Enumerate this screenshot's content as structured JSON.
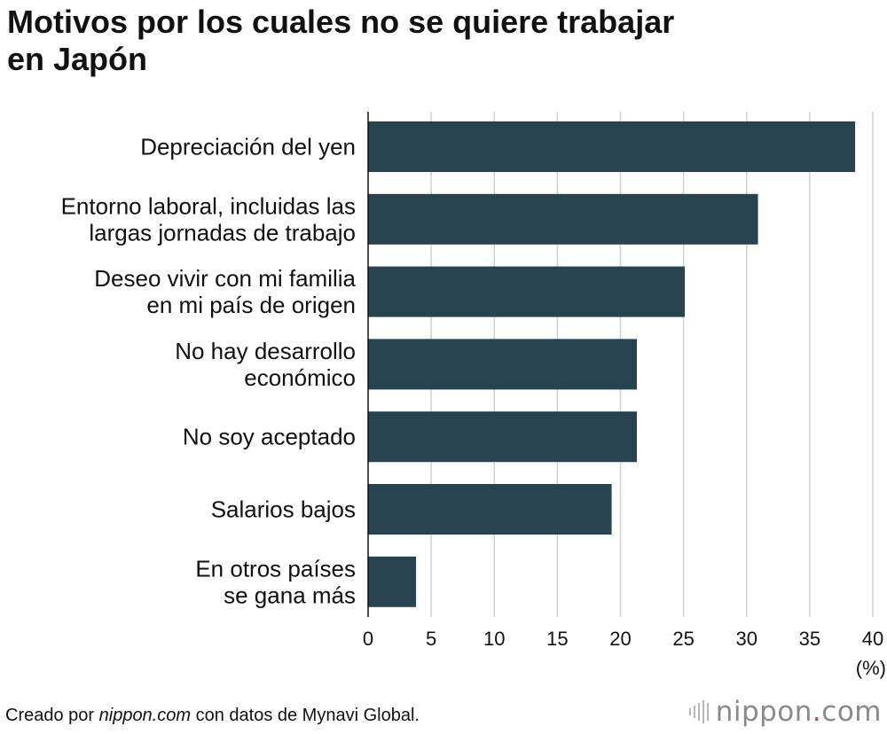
{
  "title": {
    "line1": "Motivos por los cuales no se quiere trabajar",
    "line2": "en Japón"
  },
  "chart_data": {
    "type": "bar",
    "orientation": "horizontal",
    "categories": [
      [
        "Depreciación del yen"
      ],
      [
        "Entorno laboral, incluidas las",
        "largas jornadas de trabajo"
      ],
      [
        "Deseo vivir con mi familia",
        "en mi país de origen"
      ],
      [
        "No hay desarrollo",
        "económico"
      ],
      [
        "No soy aceptado"
      ],
      [
        "Salarios bajos"
      ],
      [
        "En otros países",
        "se gana más"
      ]
    ],
    "values": [
      38.6,
      30.9,
      25.1,
      21.3,
      21.3,
      19.3,
      3.8
    ],
    "xlim": [
      0,
      40
    ],
    "xticks": [
      0,
      5,
      10,
      15,
      20,
      25,
      30,
      35,
      40
    ],
    "xlabel": "(%)",
    "bar_color": "#27434f",
    "grid": true
  },
  "footer": {
    "prefix": "Creado por ",
    "source": "nippon.com",
    "suffix": " con datos de Mynavi Global."
  },
  "logo": {
    "name": "nippon",
    "dot": ".",
    "tld": "com",
    "dot_color": "#e3342f"
  }
}
